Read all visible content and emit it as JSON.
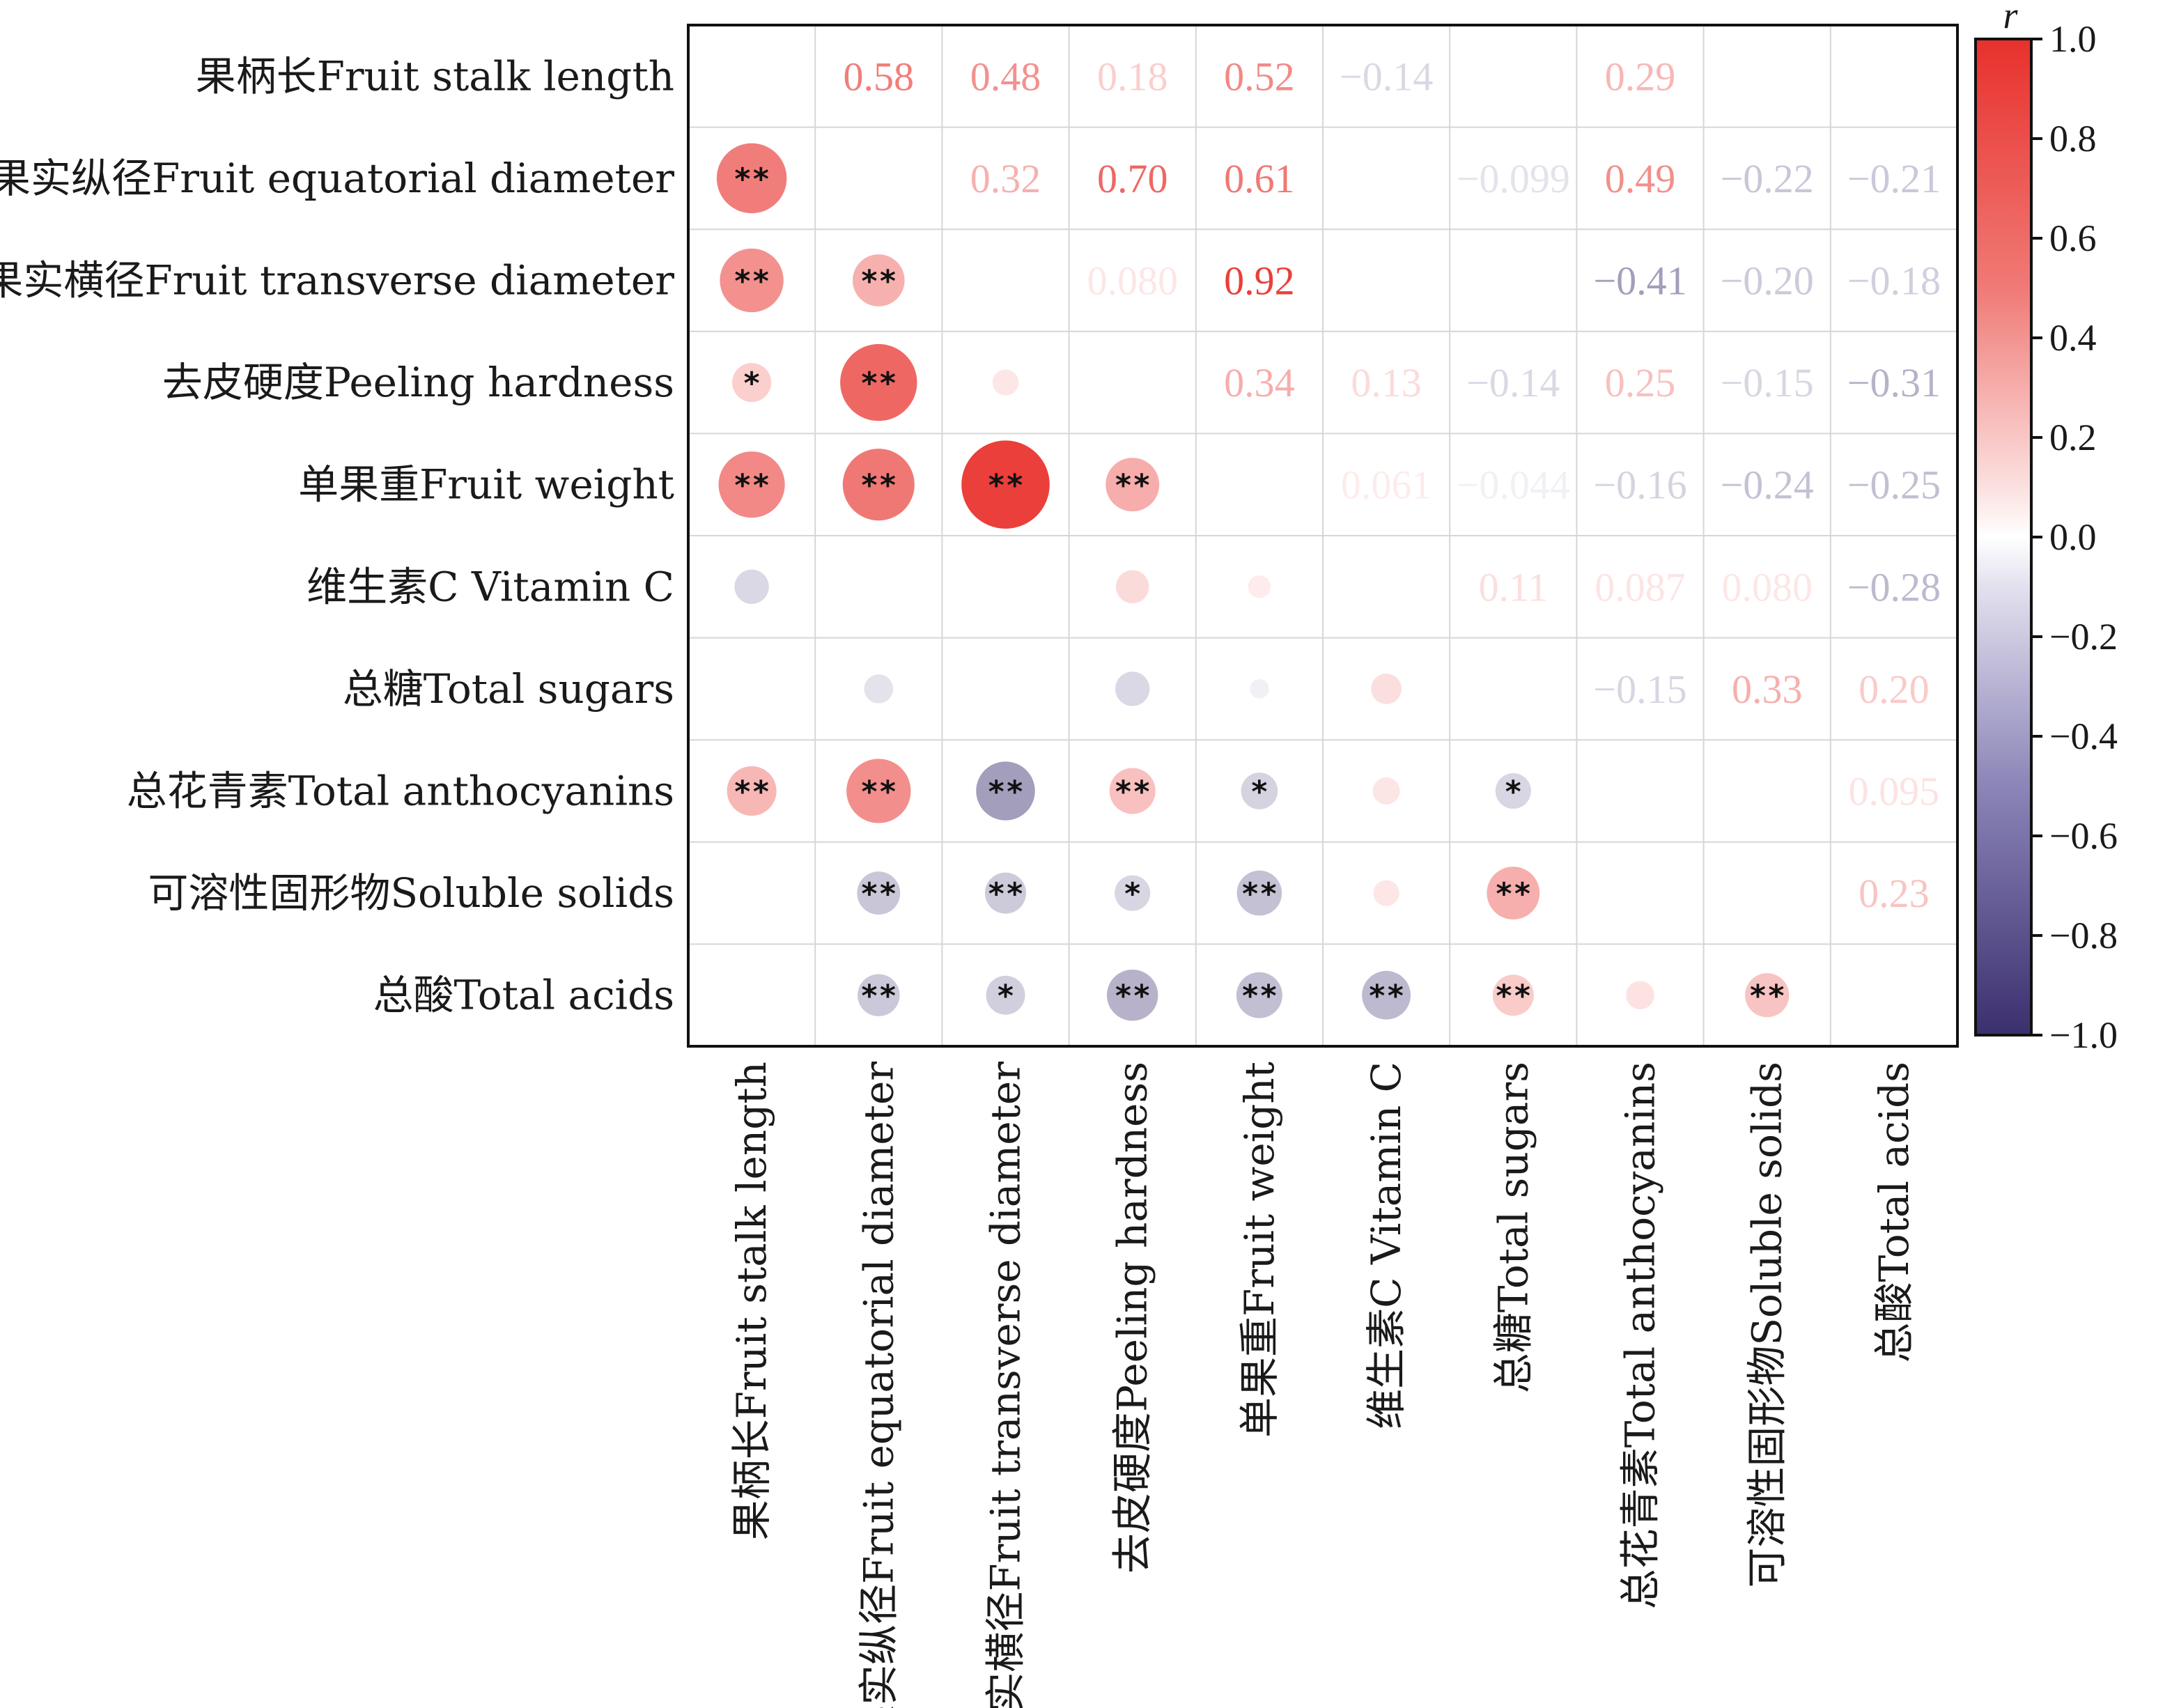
{
  "chart_data": {
    "type": "heatmap",
    "title": "",
    "lower_triangle": "circles (size and color = r) with significance stars",
    "upper_triangle": "correlation coefficients r",
    "variables": [
      "果柄长Fruit stalk length",
      "果实纵径Fruit  equatorial diameter",
      "果实横径Fruit transverse diameter",
      "去皮硬度Peeling hardness",
      "单果重Fruit weight",
      "维生素C  Vitamin C",
      "总糖Total sugars",
      "总花青素Total anthocyanins",
      "可溶性固形物Soluble solids",
      "总酸Total acids"
    ],
    "column_labels": [
      "果柄长Fruit stalk length",
      "果实纵径Fruit  equatorial diameter",
      "果实横径Fruit transverse diameter",
      "去皮硬度Peeling hardness",
      "单果重Fruit weight",
      "维生素C  Vitamin C",
      "总糖Total sugars",
      "总花青素Total anthocyanins",
      "可溶性固形物Soluble solids",
      "总酸Total acids"
    ],
    "upper_cells": [
      {
        "row": 0,
        "col": 1,
        "value": 0.58,
        "label": "0.58"
      },
      {
        "row": 0,
        "col": 2,
        "value": 0.48,
        "label": "0.48"
      },
      {
        "row": 0,
        "col": 3,
        "value": 0.18,
        "label": "0.18"
      },
      {
        "row": 0,
        "col": 4,
        "value": 0.52,
        "label": "0.52"
      },
      {
        "row": 0,
        "col": 5,
        "value": -0.14,
        "label": "−0.14"
      },
      {
        "row": 0,
        "col": 7,
        "value": 0.29,
        "label": "0.29"
      },
      {
        "row": 1,
        "col": 2,
        "value": 0.32,
        "label": "0.32"
      },
      {
        "row": 1,
        "col": 3,
        "value": 0.7,
        "label": "0.70"
      },
      {
        "row": 1,
        "col": 4,
        "value": 0.61,
        "label": "0.61"
      },
      {
        "row": 1,
        "col": 6,
        "value": -0.099,
        "label": "−0.099"
      },
      {
        "row": 1,
        "col": 7,
        "value": 0.49,
        "label": "0.49"
      },
      {
        "row": 1,
        "col": 8,
        "value": -0.22,
        "label": "−0.22"
      },
      {
        "row": 1,
        "col": 9,
        "value": -0.21,
        "label": "−0.21"
      },
      {
        "row": 2,
        "col": 3,
        "value": 0.08,
        "label": "0.080"
      },
      {
        "row": 2,
        "col": 4,
        "value": 0.92,
        "label": "0.92"
      },
      {
        "row": 2,
        "col": 7,
        "value": -0.41,
        "label": "−0.41"
      },
      {
        "row": 2,
        "col": 8,
        "value": -0.2,
        "label": "−0.20"
      },
      {
        "row": 2,
        "col": 9,
        "value": -0.18,
        "label": "−0.18"
      },
      {
        "row": 3,
        "col": 4,
        "value": 0.34,
        "label": "0.34"
      },
      {
        "row": 3,
        "col": 5,
        "value": 0.13,
        "label": "0.13"
      },
      {
        "row": 3,
        "col": 6,
        "value": -0.14,
        "label": "−0.14"
      },
      {
        "row": 3,
        "col": 7,
        "value": 0.25,
        "label": "0.25"
      },
      {
        "row": 3,
        "col": 8,
        "value": -0.15,
        "label": "−0.15"
      },
      {
        "row": 3,
        "col": 9,
        "value": -0.31,
        "label": "−0.31"
      },
      {
        "row": 4,
        "col": 5,
        "value": 0.061,
        "label": "0.061"
      },
      {
        "row": 4,
        "col": 6,
        "value": -0.044,
        "label": "−0.044"
      },
      {
        "row": 4,
        "col": 7,
        "value": -0.16,
        "label": "−0.16"
      },
      {
        "row": 4,
        "col": 8,
        "value": -0.24,
        "label": "−0.24"
      },
      {
        "row": 4,
        "col": 9,
        "value": -0.25,
        "label": "−0.25"
      },
      {
        "row": 5,
        "col": 6,
        "value": 0.11,
        "label": "0.11"
      },
      {
        "row": 5,
        "col": 7,
        "value": 0.087,
        "label": "0.087"
      },
      {
        "row": 5,
        "col": 8,
        "value": 0.08,
        "label": "0.080"
      },
      {
        "row": 5,
        "col": 9,
        "value": -0.28,
        "label": "−0.28"
      },
      {
        "row": 6,
        "col": 7,
        "value": -0.15,
        "label": "−0.15"
      },
      {
        "row": 6,
        "col": 8,
        "value": 0.33,
        "label": "0.33"
      },
      {
        "row": 6,
        "col": 9,
        "value": 0.2,
        "label": "0.20"
      },
      {
        "row": 7,
        "col": 9,
        "value": 0.095,
        "label": "0.095"
      },
      {
        "row": 8,
        "col": 9,
        "value": 0.23,
        "label": "0.23"
      }
    ],
    "lower_cells": [
      {
        "row": 1,
        "col": 0,
        "value": 0.58,
        "sig": "**"
      },
      {
        "row": 2,
        "col": 0,
        "value": 0.48,
        "sig": "**"
      },
      {
        "row": 2,
        "col": 1,
        "value": 0.32,
        "sig": "**"
      },
      {
        "row": 3,
        "col": 0,
        "value": 0.18,
        "sig": "*"
      },
      {
        "row": 3,
        "col": 1,
        "value": 0.7,
        "sig": "**"
      },
      {
        "row": 3,
        "col": 2,
        "value": 0.08,
        "sig": ""
      },
      {
        "row": 4,
        "col": 0,
        "value": 0.52,
        "sig": "**"
      },
      {
        "row": 4,
        "col": 1,
        "value": 0.61,
        "sig": "**"
      },
      {
        "row": 4,
        "col": 2,
        "value": 0.92,
        "sig": "**"
      },
      {
        "row": 4,
        "col": 3,
        "value": 0.34,
        "sig": "**"
      },
      {
        "row": 5,
        "col": 0,
        "value": -0.14,
        "sig": ""
      },
      {
        "row": 5,
        "col": 3,
        "value": 0.13,
        "sig": ""
      },
      {
        "row": 5,
        "col": 4,
        "value": 0.061,
        "sig": ""
      },
      {
        "row": 6,
        "col": 1,
        "value": -0.099,
        "sig": ""
      },
      {
        "row": 6,
        "col": 3,
        "value": -0.14,
        "sig": ""
      },
      {
        "row": 6,
        "col": 4,
        "value": -0.044,
        "sig": ""
      },
      {
        "row": 6,
        "col": 5,
        "value": 0.11,
        "sig": ""
      },
      {
        "row": 7,
        "col": 0,
        "value": 0.29,
        "sig": "**"
      },
      {
        "row": 7,
        "col": 1,
        "value": 0.49,
        "sig": "**"
      },
      {
        "row": 7,
        "col": 2,
        "value": -0.41,
        "sig": "**"
      },
      {
        "row": 7,
        "col": 3,
        "value": 0.25,
        "sig": "**"
      },
      {
        "row": 7,
        "col": 4,
        "value": -0.16,
        "sig": "*"
      },
      {
        "row": 7,
        "col": 5,
        "value": 0.087,
        "sig": ""
      },
      {
        "row": 7,
        "col": 6,
        "value": -0.15,
        "sig": "*"
      },
      {
        "row": 8,
        "col": 1,
        "value": -0.22,
        "sig": "**"
      },
      {
        "row": 8,
        "col": 2,
        "value": -0.2,
        "sig": "**"
      },
      {
        "row": 8,
        "col": 3,
        "value": -0.15,
        "sig": "*"
      },
      {
        "row": 8,
        "col": 4,
        "value": -0.24,
        "sig": "**"
      },
      {
        "row": 8,
        "col": 5,
        "value": 0.08,
        "sig": ""
      },
      {
        "row": 8,
        "col": 6,
        "value": 0.33,
        "sig": "**"
      },
      {
        "row": 9,
        "col": 1,
        "value": -0.21,
        "sig": "**"
      },
      {
        "row": 9,
        "col": 2,
        "value": -0.18,
        "sig": "*"
      },
      {
        "row": 9,
        "col": 3,
        "value": -0.31,
        "sig": "**"
      },
      {
        "row": 9,
        "col": 4,
        "value": -0.25,
        "sig": "**"
      },
      {
        "row": 9,
        "col": 5,
        "value": -0.28,
        "sig": "**"
      },
      {
        "row": 9,
        "col": 6,
        "value": 0.2,
        "sig": "**"
      },
      {
        "row": 9,
        "col": 7,
        "value": 0.095,
        "sig": ""
      },
      {
        "row": 9,
        "col": 8,
        "value": 0.23,
        "sig": "**"
      }
    ],
    "colorbar": {
      "title": "r",
      "range": [
        -1.0,
        1.0
      ],
      "ticks": [
        1.0,
        0.8,
        0.6,
        0.4,
        0.2,
        0.0,
        -0.2,
        -0.4,
        -0.6,
        -0.8,
        -1.0
      ],
      "tick_labels": [
        "1.0",
        "0.8",
        "0.6",
        "0.4",
        "0.2",
        "0.0",
        "−0.2",
        "−0.4",
        "−0.6",
        "−0.8",
        "−1.0"
      ],
      "colors": {
        "negative": "#3b2f6e",
        "neutral": "#ffffff",
        "positive": "#e8312c"
      }
    }
  }
}
